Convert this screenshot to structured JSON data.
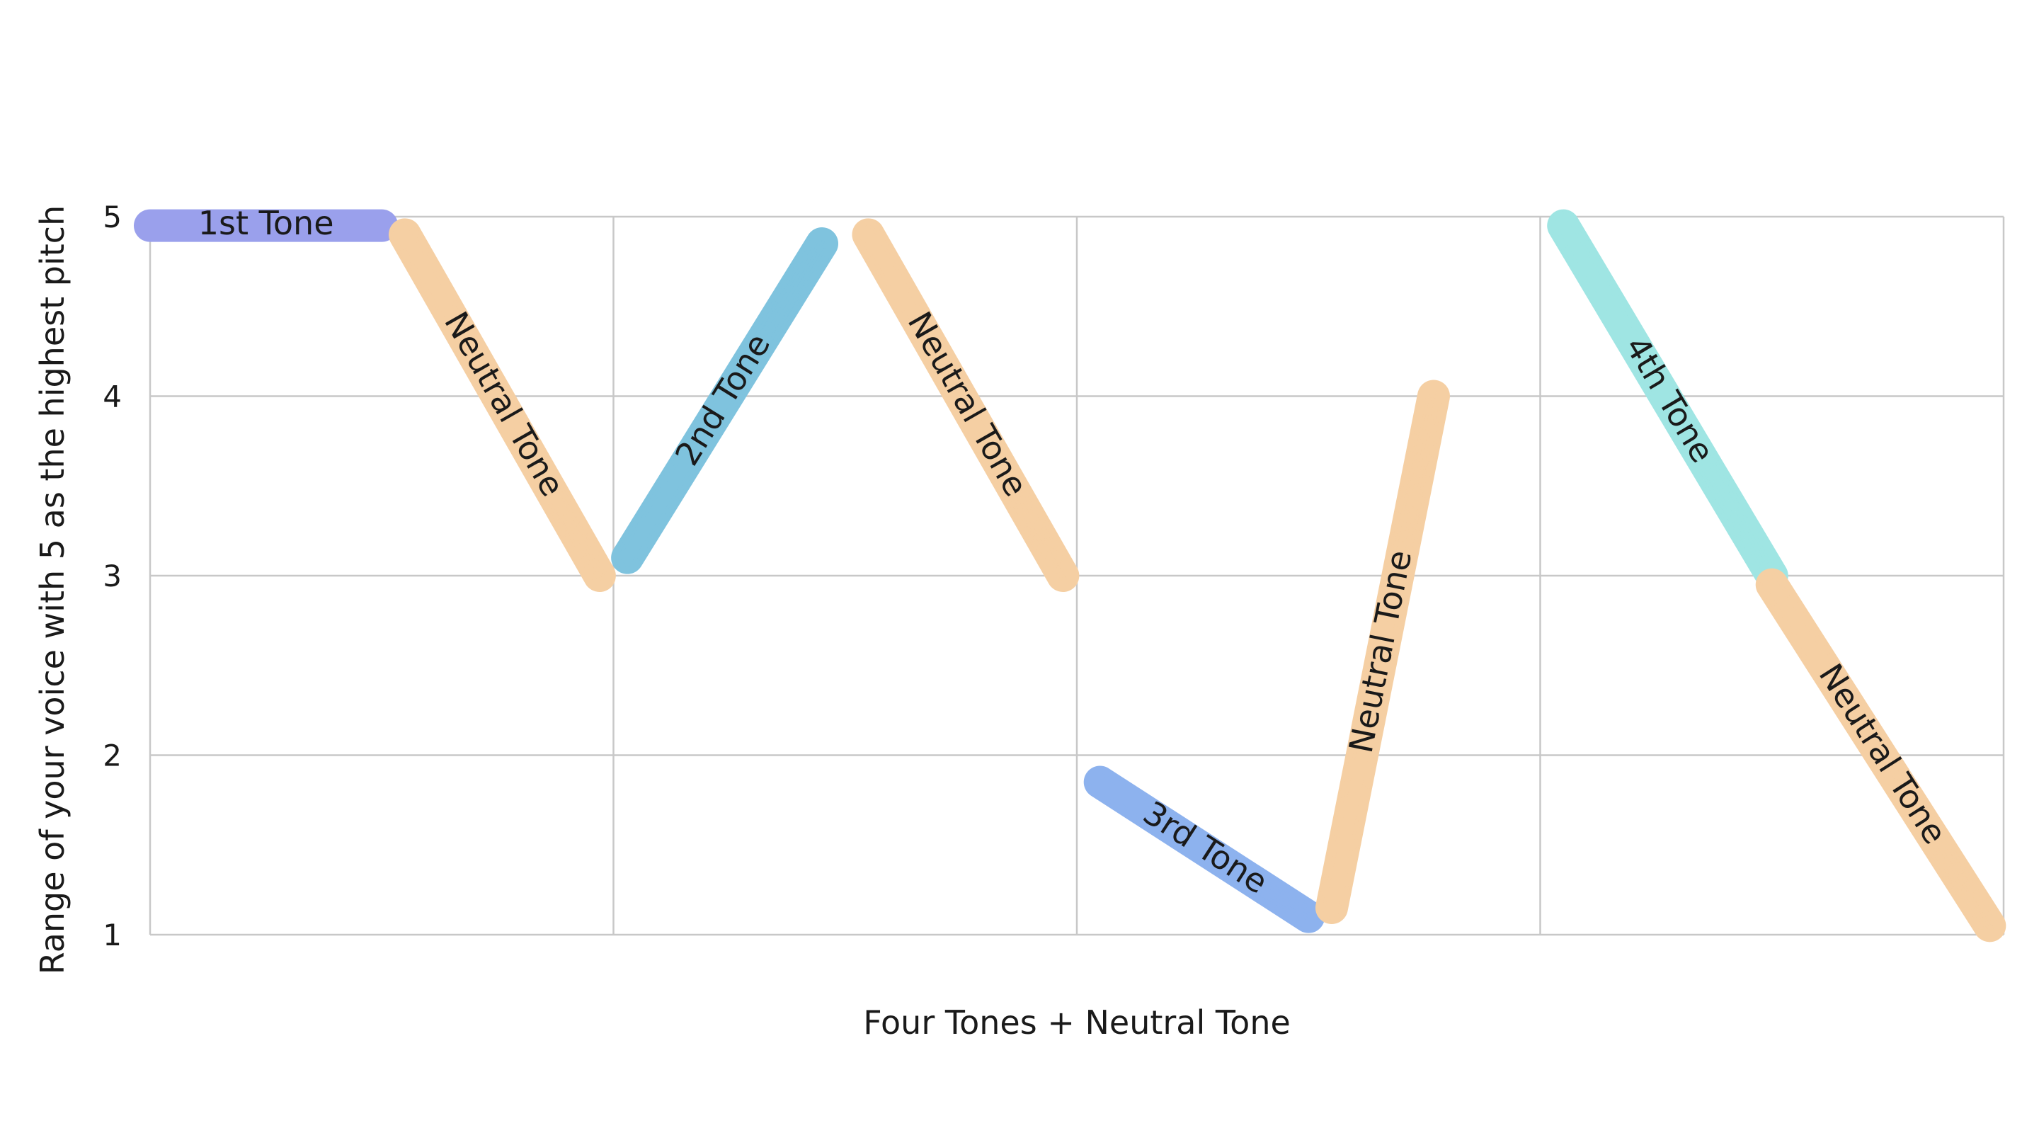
{
  "chart_data": {
    "type": "line",
    "xlabel": "Four Tones + Neutral Tone",
    "ylabel": "Range of your voice with 5 as the highest pitch",
    "ylim": [
      1,
      5
    ],
    "xlim": [
      0,
      4
    ],
    "y_ticks": [
      "1",
      "2",
      "3",
      "4",
      "5"
    ],
    "x_gridlines": [
      0,
      1,
      2,
      3,
      4
    ],
    "grid": true,
    "series": [
      {
        "label": "1st Tone",
        "color": "#9aa0ec",
        "x": [
          0.0,
          0.5
        ],
        "y": [
          4.95,
          4.95
        ]
      },
      {
        "label": "Neutral Tone",
        "color": "#f5cfa3",
        "x": [
          0.55,
          0.97
        ],
        "y": [
          4.9,
          3.0
        ]
      },
      {
        "label": "2nd Tone",
        "color": "#7fc3de",
        "x": [
          1.03,
          1.45
        ],
        "y": [
          3.1,
          4.85
        ]
      },
      {
        "label": "Neutral Tone",
        "color": "#f5cfa3",
        "x": [
          1.55,
          1.97
        ],
        "y": [
          4.9,
          3.0
        ]
      },
      {
        "label": "3rd Tone",
        "color": "#8db2ee",
        "x": [
          2.05,
          2.5
        ],
        "y": [
          1.85,
          1.1
        ]
      },
      {
        "label": "Neutral Tone",
        "color": "#f5cfa3",
        "x": [
          2.55,
          2.77
        ],
        "y": [
          1.15,
          4.0
        ]
      },
      {
        "label": "4th Tone",
        "color": "#9fe5e3",
        "x": [
          3.05,
          3.5
        ],
        "y": [
          4.95,
          3.0
        ]
      },
      {
        "label": "Neutral Tone",
        "color": "#f5cfa3",
        "x": [
          3.5,
          3.97
        ],
        "y": [
          2.95,
          1.05
        ]
      }
    ]
  }
}
